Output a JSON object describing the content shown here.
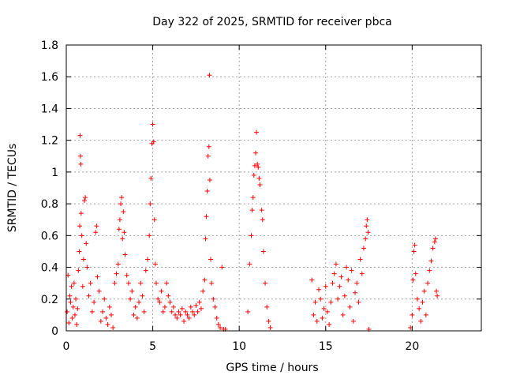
{
  "chart_data": {
    "type": "scatter",
    "title": "Day 322 of 2025, SRMTID for receiver pbca",
    "xlabel": "GPS time / hours",
    "ylabel": "SRMTID / TECUs",
    "xlim": [
      0,
      24
    ],
    "ylim": [
      0,
      1.8
    ],
    "xticks": [
      0,
      5,
      10,
      15,
      20
    ],
    "xtick_labels": [
      "0",
      "5",
      "10",
      "15",
      "20"
    ],
    "yticks": [
      0,
      0.2,
      0.4,
      0.6,
      0.8,
      1,
      1.2,
      1.4,
      1.6,
      1.8
    ],
    "ytick_labels": [
      "0",
      "0.2",
      "0.4",
      "0.6",
      "0.8",
      "1",
      "1.2",
      "1.4",
      "1.6",
      "1.8"
    ],
    "grid": true,
    "marker": "plus",
    "color": "#ff0000",
    "series": [
      {
        "name": "SRMTID",
        "points": [
          [
            0.05,
            0.12
          ],
          [
            0.1,
            0.35
          ],
          [
            0.15,
            0.05
          ],
          [
            0.2,
            0.22
          ],
          [
            0.25,
            0.18
          ],
          [
            0.3,
            0.28
          ],
          [
            0.35,
            0.08
          ],
          [
            0.4,
            0.15
          ],
          [
            0.45,
            0.3
          ],
          [
            0.5,
            0.1
          ],
          [
            0.55,
            0.2
          ],
          [
            0.6,
            0.04
          ],
          [
            0.65,
            0.14
          ],
          [
            0.7,
            0.38
          ],
          [
            0.75,
            0.5
          ],
          [
            0.78,
            0.66
          ],
          [
            0.8,
            1.23
          ],
          [
            0.82,
            1.1
          ],
          [
            0.84,
            1.05
          ],
          [
            0.86,
            0.74
          ],
          [
            0.9,
            0.6
          ],
          [
            0.95,
            0.28
          ],
          [
            1.0,
            0.45
          ],
          [
            1.05,
            0.82
          ],
          [
            1.1,
            0.84
          ],
          [
            1.15,
            0.55
          ],
          [
            1.2,
            0.4
          ],
          [
            1.3,
            0.22
          ],
          [
            1.4,
            0.3
          ],
          [
            1.5,
            0.12
          ],
          [
            1.6,
            0.18
          ],
          [
            1.7,
            0.62
          ],
          [
            1.75,
            0.66
          ],
          [
            1.8,
            0.34
          ],
          [
            1.9,
            0.25
          ],
          [
            2.0,
            0.06
          ],
          [
            2.1,
            0.12
          ],
          [
            2.2,
            0.2
          ],
          [
            2.3,
            0.08
          ],
          [
            2.4,
            0.04
          ],
          [
            2.5,
            0.15
          ],
          [
            2.6,
            0.1
          ],
          [
            2.7,
            0.02
          ],
          [
            2.8,
            0.3
          ],
          [
            2.9,
            0.36
          ],
          [
            3.0,
            0.42
          ],
          [
            3.05,
            0.64
          ],
          [
            3.1,
            0.7
          ],
          [
            3.15,
            0.8
          ],
          [
            3.2,
            0.84
          ],
          [
            3.25,
            0.58
          ],
          [
            3.3,
            0.75
          ],
          [
            3.35,
            0.62
          ],
          [
            3.4,
            0.48
          ],
          [
            3.5,
            0.35
          ],
          [
            3.6,
            0.3
          ],
          [
            3.7,
            0.2
          ],
          [
            3.8,
            0.25
          ],
          [
            3.9,
            0.1
          ],
          [
            4.0,
            0.15
          ],
          [
            4.1,
            0.08
          ],
          [
            4.2,
            0.18
          ],
          [
            4.3,
            0.3
          ],
          [
            4.4,
            0.22
          ],
          [
            4.5,
            0.12
          ],
          [
            4.6,
            0.38
          ],
          [
            4.7,
            0.45
          ],
          [
            4.8,
            0.6
          ],
          [
            4.85,
            0.8
          ],
          [
            4.9,
            0.96
          ],
          [
            4.95,
            1.18
          ],
          [
            5.0,
            1.3
          ],
          [
            5.05,
            1.19
          ],
          [
            5.1,
            0.7
          ],
          [
            5.15,
            0.42
          ],
          [
            5.2,
            0.3
          ],
          [
            5.3,
            0.2
          ],
          [
            5.4,
            0.18
          ],
          [
            5.5,
            0.25
          ],
          [
            5.6,
            0.12
          ],
          [
            5.7,
            0.15
          ],
          [
            5.8,
            0.3
          ],
          [
            5.9,
            0.22
          ],
          [
            6.0,
            0.18
          ],
          [
            6.1,
            0.12
          ],
          [
            6.2,
            0.15
          ],
          [
            6.3,
            0.1
          ],
          [
            6.4,
            0.08
          ],
          [
            6.5,
            0.12
          ],
          [
            6.6,
            0.1
          ],
          [
            6.7,
            0.14
          ],
          [
            6.8,
            0.06
          ],
          [
            6.9,
            0.12
          ],
          [
            7.0,
            0.1
          ],
          [
            7.1,
            0.08
          ],
          [
            7.2,
            0.15
          ],
          [
            7.3,
            0.12
          ],
          [
            7.4,
            0.1
          ],
          [
            7.5,
            0.16
          ],
          [
            7.6,
            0.12
          ],
          [
            7.7,
            0.18
          ],
          [
            7.8,
            0.14
          ],
          [
            7.9,
            0.25
          ],
          [
            8.0,
            0.32
          ],
          [
            8.05,
            0.58
          ],
          [
            8.1,
            0.72
          ],
          [
            8.15,
            0.88
          ],
          [
            8.2,
            1.1
          ],
          [
            8.25,
            1.16
          ],
          [
            8.28,
            1.61
          ],
          [
            8.3,
            0.95
          ],
          [
            8.35,
            0.45
          ],
          [
            8.4,
            0.3
          ],
          [
            8.5,
            0.2
          ],
          [
            8.6,
            0.15
          ],
          [
            8.7,
            0.08
          ],
          [
            8.8,
            0.04
          ],
          [
            8.9,
            0.02
          ],
          [
            9.0,
            0.4
          ],
          [
            9.1,
            0.01
          ],
          [
            9.2,
            0.01
          ],
          [
            10.5,
            0.12
          ],
          [
            10.6,
            0.42
          ],
          [
            10.7,
            0.6
          ],
          [
            10.75,
            0.76
          ],
          [
            10.8,
            0.84
          ],
          [
            10.85,
            0.98
          ],
          [
            10.9,
            1.04
          ],
          [
            10.95,
            1.12
          ],
          [
            11.0,
            1.25
          ],
          [
            11.05,
            1.05
          ],
          [
            11.1,
            1.03
          ],
          [
            11.15,
            0.96
          ],
          [
            11.2,
            0.92
          ],
          [
            11.3,
            0.76
          ],
          [
            11.35,
            0.7
          ],
          [
            11.4,
            0.5
          ],
          [
            11.5,
            0.3
          ],
          [
            11.6,
            0.15
          ],
          [
            11.7,
            0.06
          ],
          [
            11.8,
            0.02
          ],
          [
            14.2,
            0.32
          ],
          [
            14.3,
            0.1
          ],
          [
            14.4,
            0.18
          ],
          [
            14.5,
            0.06
          ],
          [
            14.6,
            0.26
          ],
          [
            14.7,
            0.2
          ],
          [
            14.8,
            0.08
          ],
          [
            14.9,
            0.14
          ],
          [
            15.0,
            0.28
          ],
          [
            15.1,
            0.12
          ],
          [
            15.2,
            0.04
          ],
          [
            15.3,
            0.18
          ],
          [
            15.4,
            0.3
          ],
          [
            15.5,
            0.36
          ],
          [
            15.6,
            0.42
          ],
          [
            15.7,
            0.2
          ],
          [
            15.8,
            0.28
          ],
          [
            15.9,
            0.34
          ],
          [
            16.0,
            0.1
          ],
          [
            16.1,
            0.22
          ],
          [
            16.2,
            0.4
          ],
          [
            16.3,
            0.32
          ],
          [
            16.4,
            0.15
          ],
          [
            16.5,
            0.38
          ],
          [
            16.6,
            0.06
          ],
          [
            16.7,
            0.24
          ],
          [
            16.8,
            0.3
          ],
          [
            16.9,
            0.18
          ],
          [
            17.0,
            0.45
          ],
          [
            17.1,
            0.36
          ],
          [
            17.2,
            0.52
          ],
          [
            17.3,
            0.58
          ],
          [
            17.35,
            0.66
          ],
          [
            17.4,
            0.7
          ],
          [
            17.45,
            0.62
          ],
          [
            17.5,
            0.01
          ],
          [
            19.9,
            0.02
          ],
          [
            20.0,
            0.1
          ],
          [
            20.05,
            0.32
          ],
          [
            20.1,
            0.5
          ],
          [
            20.15,
            0.54
          ],
          [
            20.2,
            0.36
          ],
          [
            20.3,
            0.2
          ],
          [
            20.4,
            0.14
          ],
          [
            20.5,
            0.06
          ],
          [
            20.6,
            0.18
          ],
          [
            20.7,
            0.25
          ],
          [
            20.8,
            0.1
          ],
          [
            20.9,
            0.3
          ],
          [
            21.0,
            0.38
          ],
          [
            21.1,
            0.44
          ],
          [
            21.2,
            0.52
          ],
          [
            21.3,
            0.56
          ],
          [
            21.35,
            0.58
          ],
          [
            21.4,
            0.25
          ],
          [
            21.45,
            0.22
          ]
        ]
      }
    ]
  }
}
